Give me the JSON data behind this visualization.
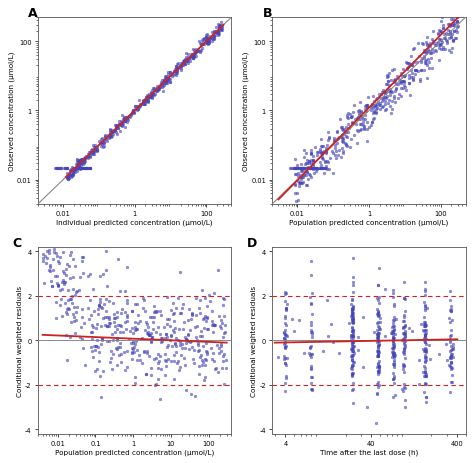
{
  "panel_labels": [
    "A",
    "B",
    "C",
    "D"
  ],
  "dot_color": "#4444BB",
  "dot_size": 4,
  "dot_alpha": 0.6,
  "red_line_color": "#CC2222",
  "black_line_color": "#333333",
  "gray_line_color": "#888888",
  "dashed_line_color": "#CC2222",
  "background_color": "#ffffff",
  "panel_A": {
    "xlabel": "Individual predicted concentration (μmol/L)",
    "ylabel": "Observed concentration (μmol/L)",
    "xlim_log": [
      0.002,
      500
    ],
    "ylim_log": [
      0.002,
      500
    ],
    "xticks": [
      0.01,
      1,
      100
    ],
    "xticklabels": [
      "0.01",
      "1",
      "100"
    ],
    "yticks": [
      0.01,
      1,
      100
    ],
    "yticklabels": [
      "0.01",
      "1",
      "100"
    ],
    "n_scatter": 500,
    "seed": 42,
    "loq_y": 0.022,
    "n_loq": 55
  },
  "panel_B": {
    "xlabel": "Population predicted concentration (μmol/L)",
    "ylabel": "Observed concentration (μmol/L)",
    "xlim_log": [
      0.002,
      500
    ],
    "ylim_log": [
      0.002,
      500
    ],
    "xticks": [
      0.01,
      1,
      100
    ],
    "xticklabels": [
      "0.01",
      "1",
      "100"
    ],
    "yticks": [
      0.01,
      1,
      100
    ],
    "yticklabels": [
      "0.01",
      "1",
      "100"
    ],
    "n_scatter": 500,
    "seed": 43,
    "loq_y": 0.022,
    "n_loq": 55
  },
  "panel_C": {
    "xlabel": "Population predicted concentration (μmol/L)",
    "ylabel": "Conditional weighted residuals",
    "xlim_log": [
      0.003,
      400
    ],
    "ylim": [
      -4.2,
      4.2
    ],
    "xticks": [
      0.01,
      0.1,
      1,
      10,
      100
    ],
    "xticklabels": [
      "0.01",
      "0.1",
      "1",
      "10",
      "100"
    ],
    "yticks": [
      -4,
      -2,
      0,
      2,
      4
    ],
    "yticklabels": [
      "-4",
      "-2",
      "0",
      "2",
      "4"
    ],
    "n_scatter": 500,
    "seed": 44,
    "hline_dashed": [
      -2,
      2
    ],
    "red_trend_start_y": 0.25,
    "red_trend_end_y": -0.1
  },
  "panel_D": {
    "xlabel": "Time after the last dose (h)",
    "ylabel": "Conditional weighted residuals",
    "xlim_log": [
      2.8,
      500
    ],
    "ylim": [
      -4.2,
      4.2
    ],
    "xticks": [
      4,
      40,
      400
    ],
    "xticklabels": [
      "4",
      "40",
      "400"
    ],
    "yticks": [
      -4,
      -2,
      0,
      2,
      4
    ],
    "yticklabels": [
      "-4",
      "-2",
      "0",
      "2",
      "4"
    ],
    "n_scatter": 500,
    "seed": 45,
    "hline_dashed": [
      -2,
      2
    ],
    "time_clusters": [
      4,
      8,
      24,
      48,
      72,
      96,
      168,
      336
    ],
    "red_trend_start_y": -0.1,
    "red_trend_end_y": 0.05
  }
}
